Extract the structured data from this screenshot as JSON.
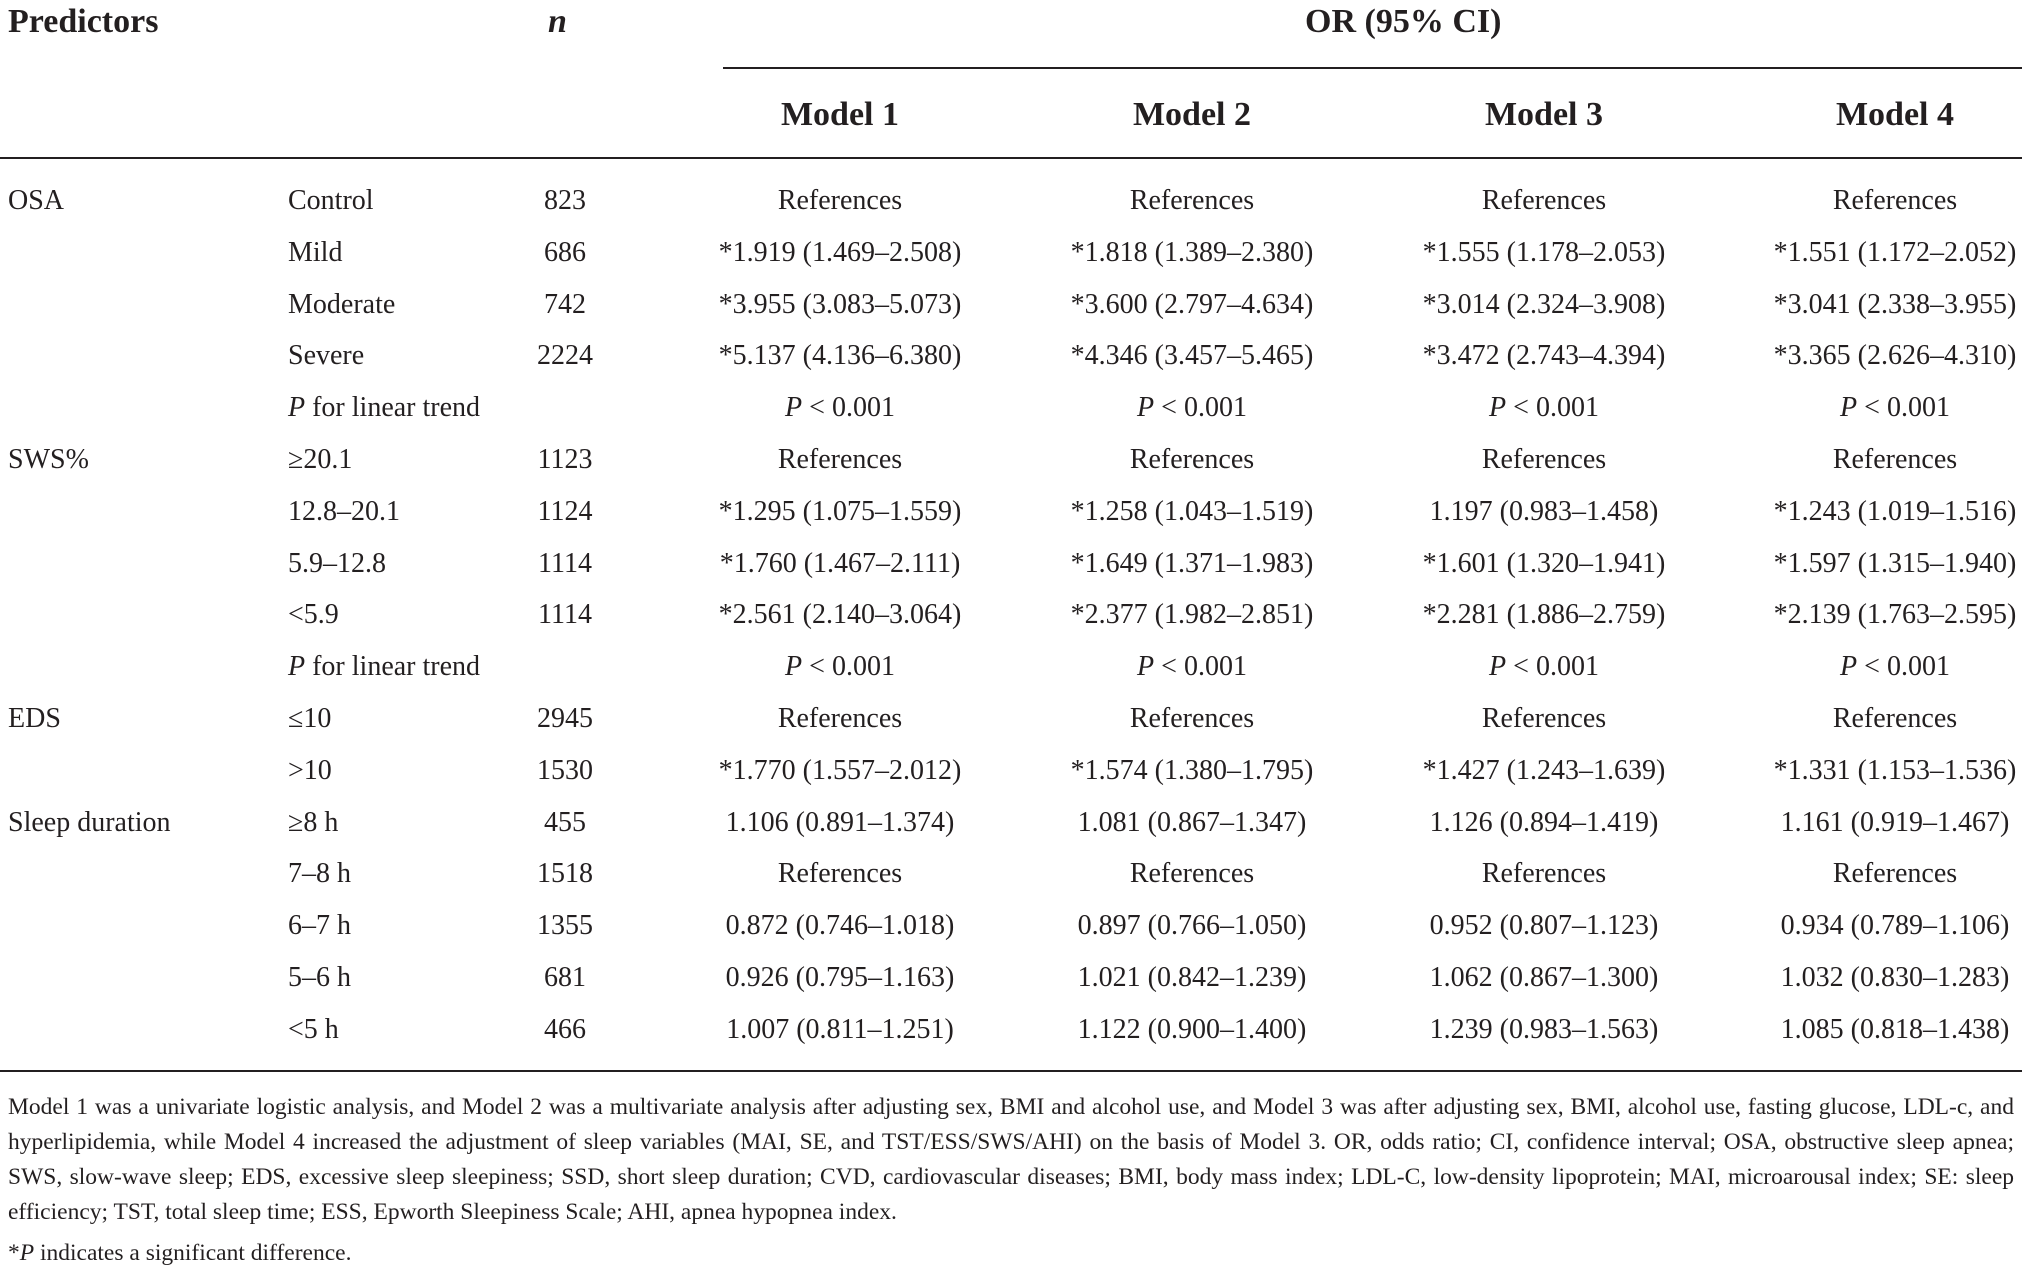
{
  "header": {
    "predictors": "Predictors",
    "n": "n",
    "or_group": "OR (95% CI)",
    "models": [
      "Model 1",
      "Model 2",
      "Model 3",
      "Model 4"
    ]
  },
  "rows": [
    {
      "group": "OSA",
      "level": "Control",
      "n": "823",
      "m1": "References",
      "m2": "References",
      "m3": "References",
      "m4": "References"
    },
    {
      "group": "",
      "level": "Mild",
      "n": "686",
      "m1": "*1.919 (1.469–2.508)",
      "m2": "*1.818 (1.389–2.380)",
      "m3": "*1.555 (1.178–2.053)",
      "m4": "*1.551 (1.172–2.052)"
    },
    {
      "group": "",
      "level": "Moderate",
      "n": "742",
      "m1": "*3.955 (3.083–5.073)",
      "m2": "*3.600 (2.797–4.634)",
      "m3": "*3.014 (2.324–3.908)",
      "m4": "*3.041 (2.338–3.955)"
    },
    {
      "group": "",
      "level": "Severe",
      "n": "2224",
      "m1": "*5.137 (4.136–6.380)",
      "m2": "*4.346 (3.457–5.465)",
      "m3": "*3.472 (2.743–4.394)",
      "m4": "*3.365 (2.626–4.310)"
    },
    {
      "group": "",
      "level_p": "P",
      "level": " for linear trend",
      "n": "",
      "m1_p": "P",
      "m1": " < 0.001",
      "m2_p": "P",
      "m2": " < 0.001",
      "m3_p": "P",
      "m3": " < 0.001",
      "m4_p": "P",
      "m4": " < 0.001"
    },
    {
      "group": "SWS%",
      "level": "≥20.1",
      "n": "1123",
      "m1": "References",
      "m2": "References",
      "m3": "References",
      "m4": "References"
    },
    {
      "group": "",
      "level": "12.8–20.1",
      "n": "1124",
      "m1": "*1.295 (1.075–1.559)",
      "m2": "*1.258 (1.043–1.519)",
      "m3": "1.197 (0.983–1.458)",
      "m4": "*1.243 (1.019–1.516)"
    },
    {
      "group": "",
      "level": "5.9–12.8",
      "n": "1114",
      "m1": "*1.760 (1.467–2.111)",
      "m2": "*1.649 (1.371–1.983)",
      "m3": "*1.601 (1.320–1.941)",
      "m4": "*1.597 (1.315–1.940)"
    },
    {
      "group": "",
      "level": "<5.9",
      "n": "1114",
      "m1": "*2.561 (2.140–3.064)",
      "m2": "*2.377 (1.982–2.851)",
      "m3": "*2.281 (1.886–2.759)",
      "m4": "*2.139 (1.763–2.595)"
    },
    {
      "group": "",
      "level_p": "P",
      "level": " for linear trend",
      "n": "",
      "m1_p": "P",
      "m1": " < 0.001",
      "m2_p": "P",
      "m2": " < 0.001",
      "m3_p": "P",
      "m3": " < 0.001",
      "m4_p": "P",
      "m4": " < 0.001"
    },
    {
      "group": "EDS",
      "level": "≤10",
      "n": "2945",
      "m1": "References",
      "m2": "References",
      "m3": "References",
      "m4": "References"
    },
    {
      "group": "",
      "level": ">10",
      "n": "1530",
      "m1": "*1.770 (1.557–2.012)",
      "m2": "*1.574 (1.380–1.795)",
      "m3": "*1.427 (1.243–1.639)",
      "m4": "*1.331 (1.153–1.536)"
    },
    {
      "group": "Sleep duration",
      "level": "≥8 h",
      "n": "455",
      "m1": "1.106 (0.891–1.374)",
      "m2": "1.081 (0.867–1.347)",
      "m3": "1.126 (0.894–1.419)",
      "m4": "1.161 (0.919–1.467)"
    },
    {
      "group": "",
      "level": "7–8 h",
      "n": "1518",
      "m1": "References",
      "m2": "References",
      "m3": "References",
      "m4": "References"
    },
    {
      "group": "",
      "level": "6–7 h",
      "n": "1355",
      "m1": "0.872 (0.746–1.018)",
      "m2": "0.897 (0.766–1.050)",
      "m3": "0.952 (0.807–1.123)",
      "m4": "0.934 (0.789–1.106)"
    },
    {
      "group": "",
      "level": "5–6 h",
      "n": "681",
      "m1": "0.926 (0.795–1.163)",
      "m2": "1.021 (0.842–1.239)",
      "m3": "1.062 (0.867–1.300)",
      "m4": "1.032 (0.830–1.283)"
    },
    {
      "group": "",
      "level": "<5 h",
      "n": "466",
      "m1": "1.007 (0.811–1.251)",
      "m2": "1.122 (0.900–1.400)",
      "m3": "1.239 (0.983–1.563)",
      "m4": "1.085 (0.818–1.438)"
    }
  ],
  "footnote": "Model 1 was a univariate logistic analysis, and Model 2 was a multivariate analysis after adjusting sex, BMI and alcohol use, and Model 3 was after adjusting sex, BMI, alcohol use, fasting glucose, LDL-c, and hyperlipidemia, while Model 4 increased the adjustment of sleep variables (MAI, SE, and TST/ESS/SWS/AHI) on the basis of Model 3. OR, odds ratio; CI, confidence interval; OSA, obstructive sleep apnea; SWS, slow-wave sleep; EDS, excessive sleep sleepiness; SSD, short sleep duration; CVD, cardiovascular diseases; BMI, body mass index; LDL-C, low-density lipoprotein; MAI, microarousal index; SE: sleep efficiency; TST, total sleep time; ESS, Epworth Sleepiness Scale; AHI, apnea hypopnea index.",
  "footnote_sig": {
    "star": "*",
    "p": "P",
    "text": " indicates a significant difference."
  }
}
